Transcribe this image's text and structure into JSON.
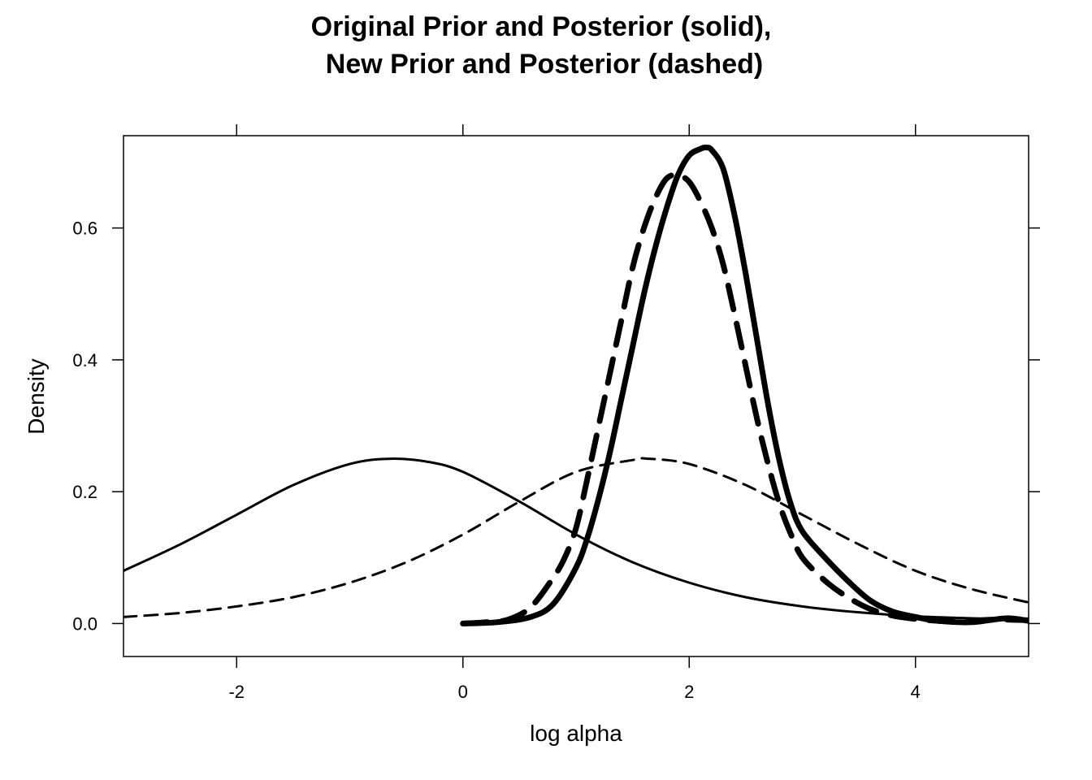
{
  "chart_data": {
    "type": "line",
    "title_line1": "Original Prior and Posterior (solid),",
    "title_line2": "New Prior and Posterior (dashed)",
    "xlabel": "log alpha",
    "ylabel": "Density",
    "xlim": [
      -3,
      5
    ],
    "ylim": [
      -0.05,
      0.74
    ],
    "xticks": [
      -2,
      0,
      2,
      4
    ],
    "yticks": [
      0.0,
      0.2,
      0.4,
      0.6
    ],
    "xtick_labels": [
      "-2",
      "0",
      "2",
      "4"
    ],
    "ytick_labels": [
      "0.0",
      "0.2",
      "0.4",
      "0.6"
    ],
    "grid": false,
    "series": [
      {
        "style": "solid-thin",
        "x": [
          -3,
          -2.5,
          -2,
          -1.5,
          -1,
          -0.64,
          -0.3,
          0,
          0.5,
          1,
          1.5,
          2,
          2.5,
          3,
          3.5,
          4,
          4.5,
          5
        ],
        "y": [
          0.08,
          0.12,
          0.165,
          0.21,
          0.242,
          0.25,
          0.245,
          0.23,
          0.185,
          0.135,
          0.093,
          0.062,
          0.04,
          0.026,
          0.017,
          0.011,
          0.008,
          0.006
        ]
      },
      {
        "style": "dashed-thin",
        "x": [
          -3,
          -2.5,
          -2,
          -1.5,
          -1,
          -0.5,
          0,
          0.5,
          1,
          1.5,
          1.64,
          2,
          2.5,
          3,
          3.5,
          4,
          4.5,
          5
        ],
        "y": [
          0.01,
          0.016,
          0.026,
          0.04,
          0.062,
          0.093,
          0.135,
          0.185,
          0.23,
          0.248,
          0.25,
          0.242,
          0.21,
          0.165,
          0.12,
          0.08,
          0.052,
          0.032
        ]
      },
      {
        "style": "solid-thick",
        "x": [
          0,
          0.3,
          0.6,
          0.8,
          1.0,
          1.1,
          1.2,
          1.3,
          1.4,
          1.5,
          1.6,
          1.7,
          1.8,
          1.9,
          2.0,
          2.1,
          2.15,
          2.2,
          2.3,
          2.4,
          2.5,
          2.6,
          2.7,
          2.8,
          2.9,
          3.0,
          3.2,
          3.4,
          3.6,
          3.8,
          4.0,
          4.2,
          4.5,
          4.8,
          5.0
        ],
        "y": [
          0.0,
          0.002,
          0.01,
          0.03,
          0.085,
          0.13,
          0.19,
          0.26,
          0.34,
          0.42,
          0.5,
          0.57,
          0.63,
          0.68,
          0.71,
          0.72,
          0.722,
          0.718,
          0.69,
          0.62,
          0.53,
          0.43,
          0.33,
          0.245,
          0.18,
          0.14,
          0.1,
          0.065,
          0.035,
          0.018,
          0.01,
          0.004,
          0.002,
          0.008,
          0.004
        ]
      },
      {
        "style": "dashed-thick",
        "x": [
          0,
          0.2,
          0.4,
          0.6,
          0.8,
          0.9,
          1.0,
          1.1,
          1.2,
          1.3,
          1.4,
          1.5,
          1.6,
          1.7,
          1.8,
          1.9,
          2.0,
          2.1,
          2.2,
          2.3,
          2.4,
          2.5,
          2.6,
          2.7,
          2.8,
          2.9,
          3.0,
          3.2,
          3.4,
          3.6,
          3.8,
          4.0,
          4.2,
          4.4,
          4.7,
          5.0
        ],
        "y": [
          0.0,
          0.002,
          0.006,
          0.025,
          0.07,
          0.1,
          0.145,
          0.22,
          0.3,
          0.38,
          0.46,
          0.54,
          0.6,
          0.645,
          0.675,
          0.68,
          0.67,
          0.64,
          0.6,
          0.545,
          0.47,
          0.39,
          0.31,
          0.24,
          0.18,
          0.135,
          0.1,
          0.065,
          0.04,
          0.022,
          0.012,
          0.007,
          0.004,
          0.003,
          0.006,
          0.005
        ]
      }
    ]
  }
}
